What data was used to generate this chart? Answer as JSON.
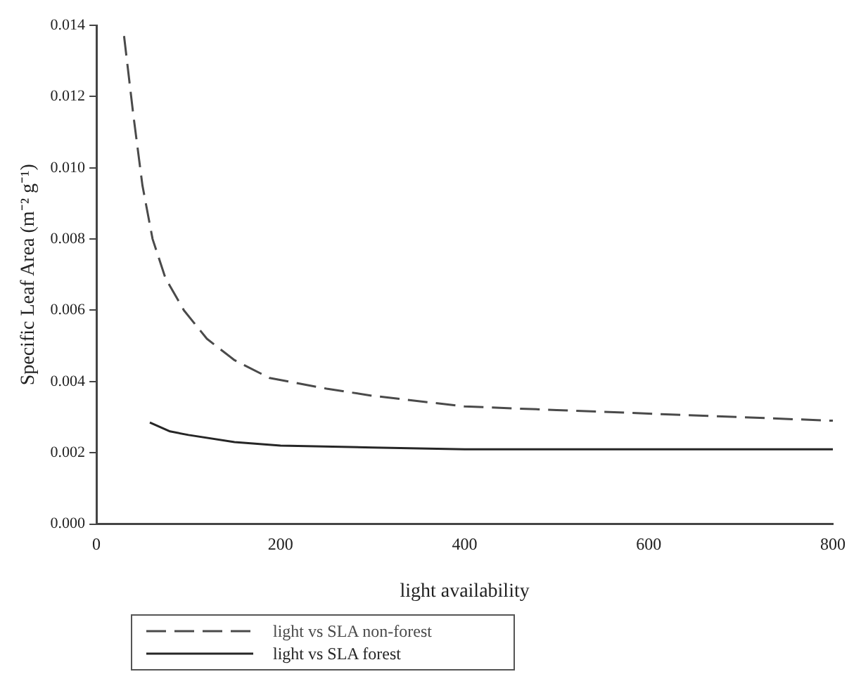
{
  "chart_data": {
    "type": "line",
    "xlabel": "light availability",
    "ylabel": "Specific Leaf Area (m⁻² g⁻¹)",
    "xlim": [
      0,
      800
    ],
    "xticks": [
      0,
      200,
      400,
      600,
      800
    ],
    "ylim": [
      0,
      0.014
    ],
    "yticks": [
      {
        "value": 0,
        "label": "0.000"
      },
      {
        "value": 0.002,
        "label": "0.002"
      },
      {
        "value": 0.004,
        "label": "0.004"
      },
      {
        "value": 0.006,
        "label": "0.006"
      },
      {
        "value": 0.008,
        "label": "0.008"
      },
      {
        "value": 0.01,
        "label": "0.010"
      },
      {
        "value": 0.012,
        "label": "0.012"
      },
      {
        "value": 0.014,
        "label": "0.014"
      }
    ],
    "grid": false,
    "legend": "bottom",
    "marker": "none",
    "series": [
      {
        "name": "light vs SLA non-forest",
        "color": "#4a4a4a",
        "line_style": "dashed",
        "x": [
          30,
          40,
          50,
          61,
          75,
          95,
          120,
          150,
          188,
          250,
          300,
          400,
          500,
          600,
          700,
          800
        ],
        "values": [
          0.0137,
          0.0115,
          0.0095,
          0.008,
          0.0069,
          0.006,
          0.0052,
          0.0046,
          0.0041,
          0.0038,
          0.0036,
          0.0033,
          0.0032,
          0.0031,
          0.003,
          0.0029
        ]
      },
      {
        "name": "light vs SLA forest",
        "color": "#262626",
        "line_style": "solid",
        "x": [
          58,
          80,
          100,
          150,
          200,
          300,
          400,
          600,
          800
        ],
        "values": [
          0.00285,
          0.0026,
          0.0025,
          0.0023,
          0.0022,
          0.00215,
          0.0021,
          0.0021,
          0.0021
        ]
      }
    ]
  }
}
